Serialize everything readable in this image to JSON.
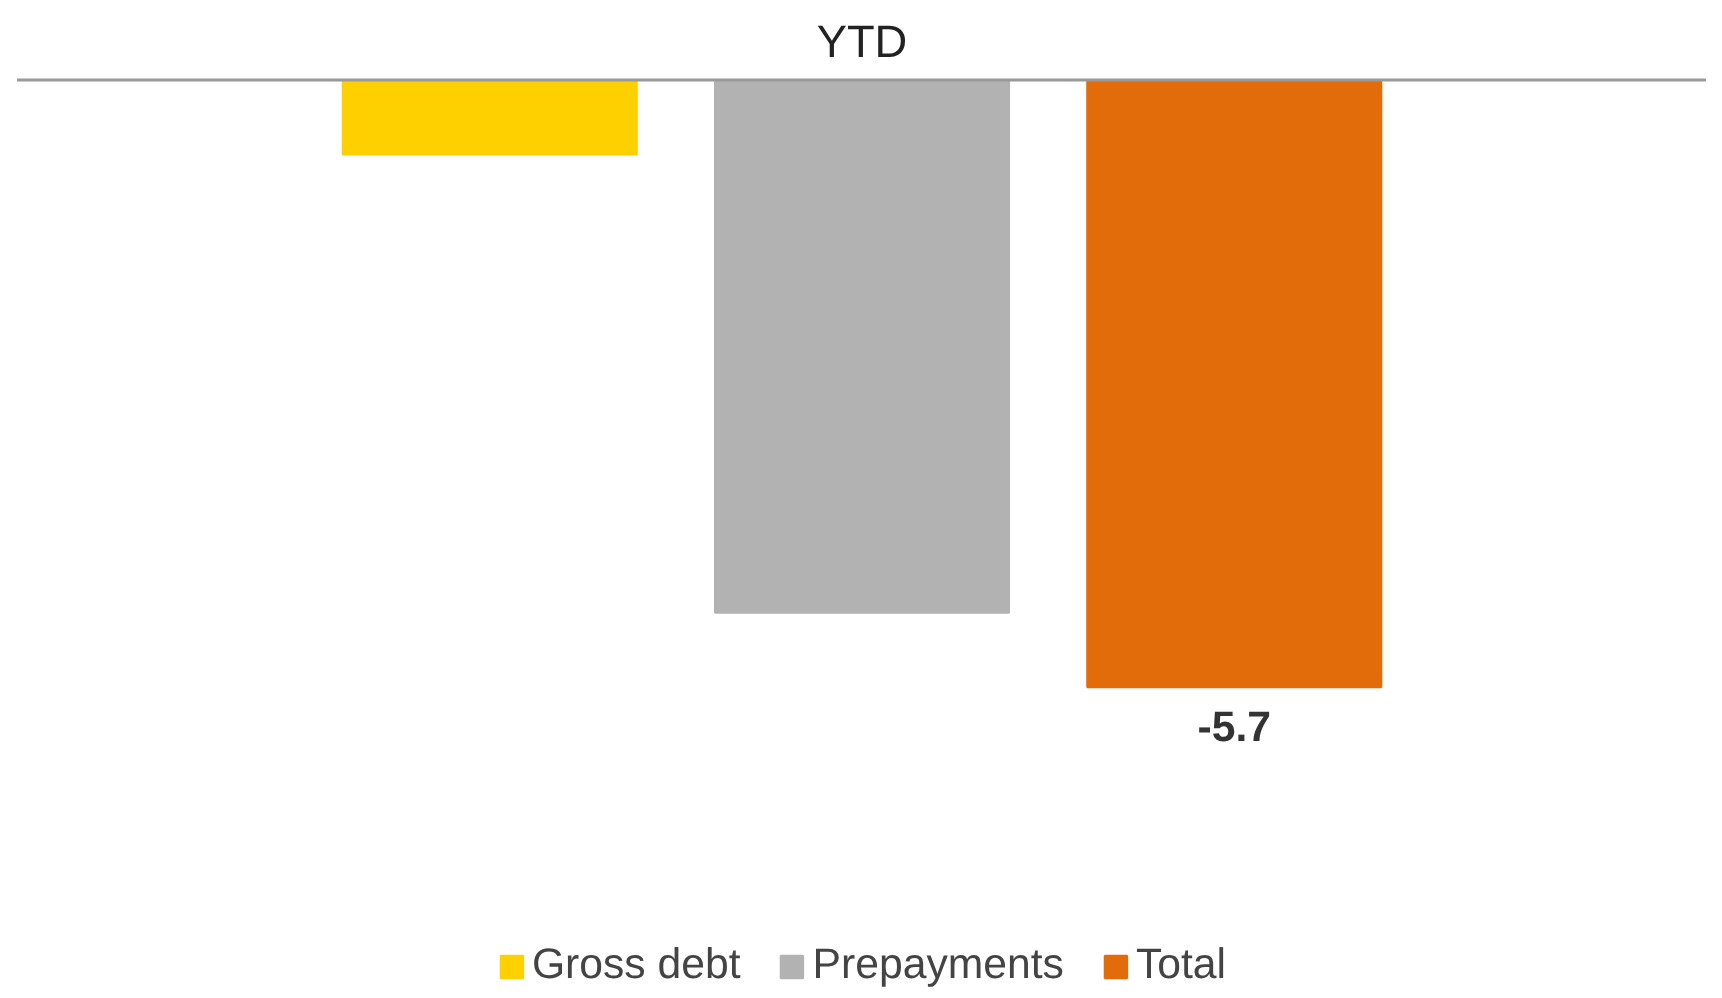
{
  "chart_data": {
    "type": "bar",
    "title": "YTD",
    "categories": [
      null
    ],
    "series": [
      {
        "name": "Gross debt",
        "color": "#ffd000",
        "values": [
          -0.7
        ],
        "value_labels": [
          null
        ]
      },
      {
        "name": "Prepayments",
        "color": "#b2b2b2",
        "values": [
          -5.0
        ],
        "value_labels": [
          null
        ]
      },
      {
        "name": "Total",
        "color": "#e36c0a",
        "values": [
          -5.7
        ],
        "value_labels": [
          "-5.7"
        ]
      }
    ],
    "legend": "bottom"
  }
}
